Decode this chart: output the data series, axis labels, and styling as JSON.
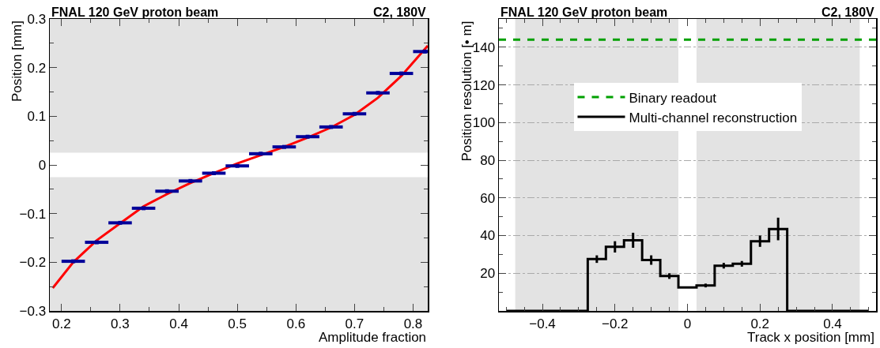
{
  "chart_data": [
    {
      "type": "scatter",
      "title": "FNAL 120 GeV proton beam",
      "subtitle": "C2, 180V",
      "xlabel": "Amplitude fraction",
      "ylabel": "Position [mm]",
      "xlim": [
        0.18,
        0.825
      ],
      "xticks": [
        0.2,
        0.3,
        0.4,
        0.5,
        0.6,
        0.7,
        0.8
      ],
      "ylim": [
        -0.3,
        0.3
      ],
      "yticks": [
        -0.3,
        -0.2,
        -0.1,
        0,
        0.1,
        0.2,
        0.3
      ],
      "grid": false,
      "legend": false,
      "bands": [
        {
          "axis": "y",
          "from": -0.3,
          "to": -0.025,
          "color": "#e3e3e3"
        },
        {
          "axis": "y",
          "from": 0.025,
          "to": 0.3,
          "color": "#e3e3e3"
        }
      ],
      "series": [
        {
          "color": "#000099",
          "marker": "square",
          "x": [
            0.22,
            0.26,
            0.3,
            0.34,
            0.38,
            0.42,
            0.46,
            0.5,
            0.54,
            0.58,
            0.62,
            0.66,
            0.7,
            0.74,
            0.78,
            0.82
          ],
          "values": [
            -0.198,
            -0.159,
            -0.119,
            -0.089,
            -0.054,
            -0.033,
            -0.017,
            -0.002,
            0.023,
            0.037,
            0.058,
            0.078,
            0.105,
            0.148,
            0.188,
            0.233
          ],
          "xerrors": [
            0.02,
            0.02,
            0.02,
            0.02,
            0.02,
            0.02,
            0.02,
            0.02,
            0.02,
            0.02,
            0.02,
            0.02,
            0.02,
            0.02,
            0.02,
            0.02
          ]
        },
        {
          "type": "line",
          "color": "#ff0000",
          "x": [
            0.185,
            0.22,
            0.26,
            0.3,
            0.34,
            0.38,
            0.42,
            0.46,
            0.5,
            0.54,
            0.58,
            0.62,
            0.66,
            0.7,
            0.74,
            0.78,
            0.825
          ],
          "values": [
            -0.253,
            -0.2,
            -0.155,
            -0.12,
            -0.085,
            -0.06,
            -0.037,
            -0.017,
            0.003,
            0.02,
            0.037,
            0.056,
            0.077,
            0.103,
            0.138,
            0.183,
            0.245
          ]
        }
      ]
    },
    {
      "type": "step",
      "title": "FNAL 120 GeV proton beam",
      "subtitle": "C2, 180V",
      "xlabel": "Track x position [mm]",
      "ylabel": "Position resolution [• m]",
      "xlim": [
        -0.52,
        0.52
      ],
      "xticks": [
        -0.4,
        -0.2,
        0,
        0.2,
        0.4
      ],
      "ylim": [
        0,
        155
      ],
      "yticks": [
        20,
        40,
        60,
        80,
        100,
        120,
        140
      ],
      "grid": "y",
      "legend": "top",
      "bands": [
        {
          "axis": "x",
          "from": -0.475,
          "to": -0.025,
          "color": "#e3e3e3"
        },
        {
          "axis": "x",
          "from": 0.025,
          "to": 0.475,
          "color": "#e3e3e3"
        }
      ],
      "series": [
        {
          "type": "line",
          "name": "Binary readout",
          "color": "#00a000",
          "line_style": "dashed",
          "x": [
            -0.52,
            0.52
          ],
          "values": [
            144,
            144
          ]
        },
        {
          "name": "Multi-channel reconstruction",
          "color": "#000000",
          "x": [
            -0.5,
            -0.45,
            -0.4,
            -0.35,
            -0.3,
            -0.25,
            -0.2,
            -0.15,
            -0.1,
            -0.05,
            0,
            0.05,
            0.1,
            0.15,
            0.2,
            0.25,
            0.3,
            0.35,
            0.4,
            0.45,
            0.5
          ],
          "values": [
            0,
            0,
            0,
            0,
            0,
            27.5,
            34,
            37.5,
            27,
            18.5,
            12.5,
            13.5,
            24,
            25,
            37,
            43.5,
            0,
            0,
            0,
            0,
            0
          ],
          "errors": [
            null,
            null,
            null,
            null,
            null,
            2,
            3,
            4,
            2.5,
            1.5,
            null,
            1,
            1.5,
            1.5,
            3,
            6,
            null,
            null,
            null,
            null,
            null
          ]
        }
      ]
    }
  ]
}
